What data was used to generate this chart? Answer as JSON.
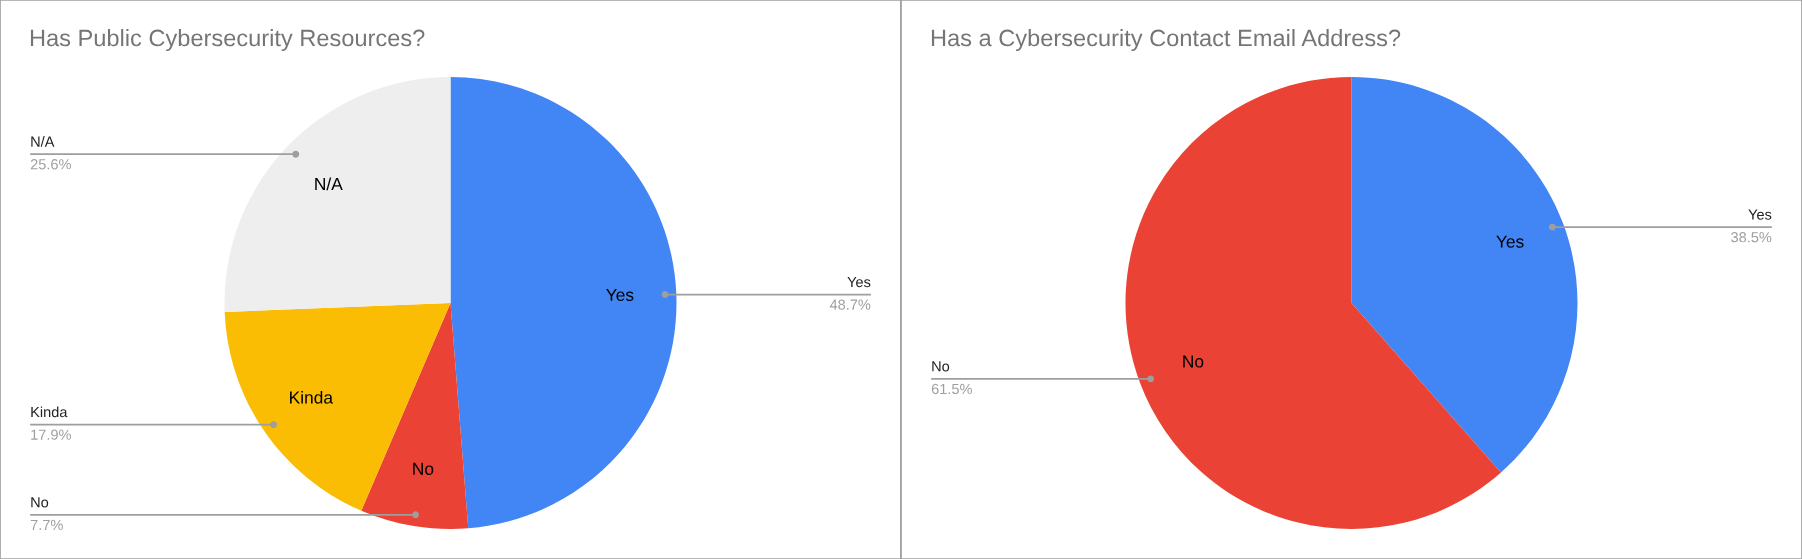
{
  "chart_data": [
    {
      "type": "pie",
      "title": "Has Public Cybersecurity Resources?",
      "categories": [
        "Yes",
        "No",
        "Kinda",
        "N/A"
      ],
      "values": [
        48.7,
        7.7,
        17.9,
        25.6
      ],
      "colors": [
        "#4285f4",
        "#ea4335",
        "#fbbc04",
        "#eeeeee"
      ],
      "value_labels": [
        "48.7%",
        "7.7%",
        "17.9%",
        "25.6%"
      ]
    },
    {
      "type": "pie",
      "title": "Has a Cybersecurity Contact Email Address?",
      "categories": [
        "Yes",
        "No"
      ],
      "values": [
        38.5,
        61.5
      ],
      "colors": [
        "#4285f4",
        "#ea4335"
      ],
      "value_labels": [
        "38.5%",
        "61.5%"
      ]
    }
  ]
}
